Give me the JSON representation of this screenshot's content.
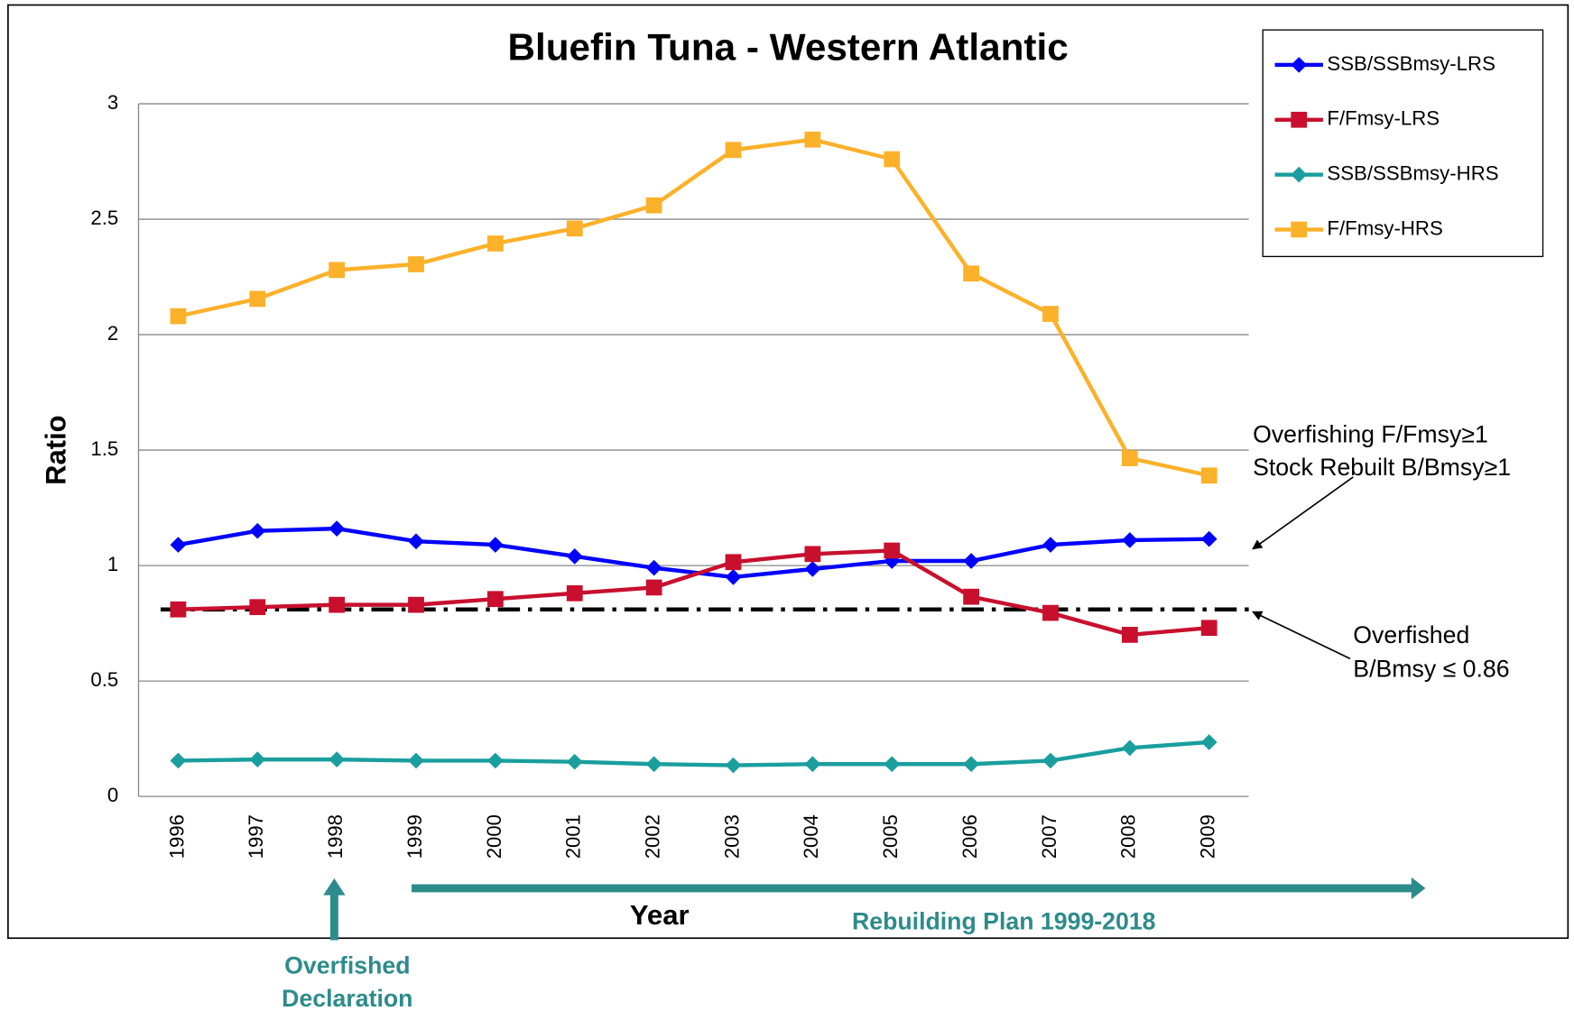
{
  "chart_data": {
    "type": "line",
    "title": "Bluefin Tuna - Western Atlantic",
    "x_label": "Year",
    "y_label": "Ratio",
    "categories": [
      "1996",
      "1997",
      "1998",
      "1999",
      "2000",
      "2001",
      "2002",
      "2003",
      "2004",
      "2005",
      "2006",
      "2007",
      "2008",
      "2009"
    ],
    "series": [
      {
        "name": "SSB/SSBmsy-LRS",
        "color": "#0000ff",
        "marker": "diamond",
        "values": [
          1.09,
          1.15,
          1.16,
          1.105,
          1.09,
          1.04,
          0.99,
          0.95,
          0.985,
          1.02,
          1.02,
          1.09,
          1.11,
          1.115
        ]
      },
      {
        "name": "F/Fmsy-LRS",
        "color": "#c8102e",
        "marker": "square",
        "values": [
          0.81,
          0.82,
          0.83,
          0.83,
          0.855,
          0.88,
          0.905,
          1.015,
          1.05,
          1.065,
          0.865,
          0.795,
          0.7,
          0.73
        ]
      },
      {
        "name": "SSB/SSBmsy-HRS",
        "color": "#1a9e9e",
        "marker": "diamond",
        "values": [
          0.155,
          0.16,
          0.16,
          0.155,
          0.155,
          0.15,
          0.14,
          0.135,
          0.14,
          0.14,
          0.14,
          0.155,
          0.21,
          0.235
        ]
      },
      {
        "name": "F/Fmsy-HRS",
        "color": "#fbb12a",
        "marker": "square",
        "values": [
          2.08,
          2.155,
          2.28,
          2.305,
          2.395,
          2.46,
          2.56,
          2.8,
          2.845,
          2.76,
          2.265,
          2.09,
          1.465,
          1.39
        ]
      }
    ],
    "reference_line": 0.81,
    "ylim": [
      0,
      3
    ],
    "yticks": [
      0,
      0.5,
      1,
      1.5,
      2,
      2.5,
      3
    ],
    "grid": true,
    "legend": "upper right",
    "annotations": {
      "overfishing": "Overfishing F/Fmsy≥1",
      "rebuilt": "Stock Rebuilt B/Bmsy≥1",
      "overfished": "Overfished",
      "overfished_threshold": "B/Bmsy ≤ 0.86",
      "rebuilding_plan": "Rebuilding Plan 1999-2018",
      "declaration": [
        "Overfished",
        "Declaration"
      ]
    }
  }
}
